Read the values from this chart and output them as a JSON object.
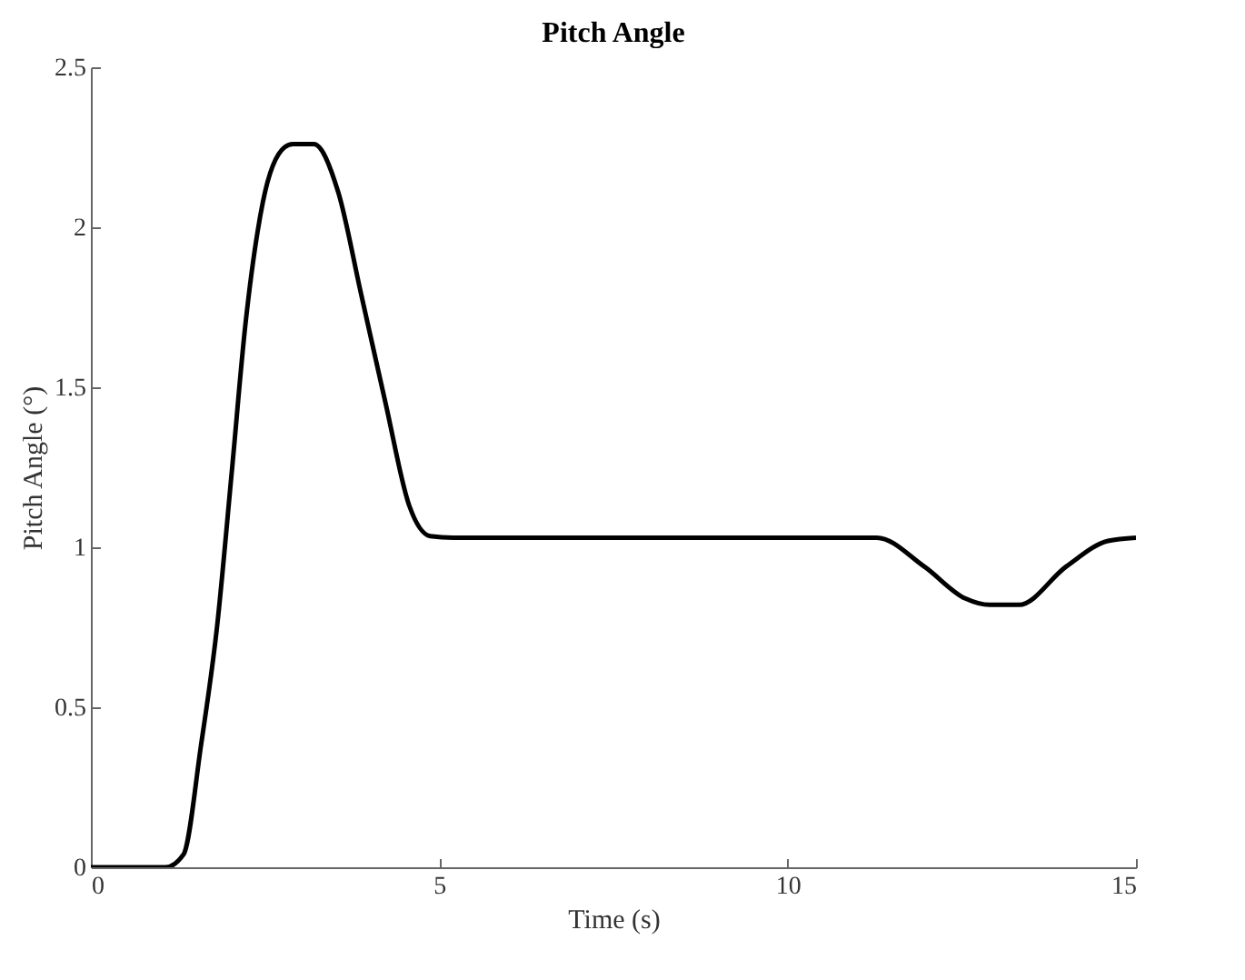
{
  "chart_data": {
    "type": "line",
    "title": "Pitch Angle",
    "xlabel": "Time (s)",
    "ylabel": "Pitch Angle (°)",
    "x": [
      0,
      1.07,
      1.33,
      1.58,
      1.81,
      2.02,
      2.22,
      2.47,
      2.78,
      2.9,
      3.2,
      3.55,
      3.88,
      4.23,
      4.57,
      4.87,
      5.2,
      8,
      11.28,
      11.96,
      12.55,
      12.9,
      13.32,
      14.0,
      14.6,
      15
    ],
    "series": [
      {
        "color": "#000000",
        "values": [
          0,
          0,
          0.04,
          0.38,
          0.75,
          1.23,
          1.7,
          2.08,
          2.25,
          2.26,
          2.26,
          2.11,
          1.79,
          1.45,
          1.13,
          1.035,
          1.03,
          1.03,
          1.03,
          0.94,
          0.84,
          0.82,
          0.82,
          0.94,
          1.02,
          1.03
        ]
      }
    ],
    "xlim": [
      0,
      15
    ],
    "xticks": [
      0,
      5,
      10,
      15
    ],
    "ylim": [
      0,
      2.5
    ],
    "yticks": [
      {
        "value": 0,
        "label": "0"
      },
      0.5,
      {
        "value": 1,
        "label": "1"
      },
      1.5,
      {
        "value": 2,
        "label": "2"
      },
      2.5
    ],
    "grid": false
  }
}
